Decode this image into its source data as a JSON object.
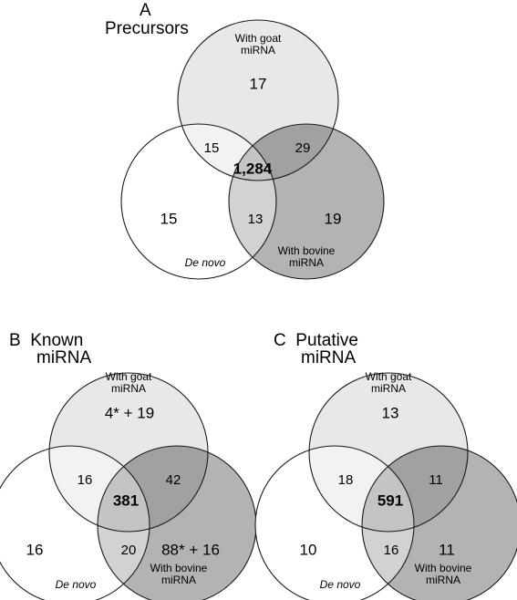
{
  "panels": [
    {
      "letter": "A",
      "title": "Precursors",
      "circle_labels": {
        "goat": [
          "With goat",
          "miRNA"
        ],
        "denovo": "De novo",
        "bovine": [
          "With bovine",
          "miRNA"
        ]
      },
      "counts": {
        "goat_only": "17",
        "denovo_only": "15",
        "bovine_only": "19",
        "goat_denovo": "15",
        "goat_bovine": "29",
        "denovo_bovine": "13",
        "all_three": "1,284"
      }
    },
    {
      "letter": "B",
      "title_line1": "B  Known",
      "title_line2": "miRNA",
      "circle_labels": {
        "goat": [
          "With goat",
          "miRNA"
        ],
        "denovo": "De novo",
        "bovine": [
          "With bovine",
          "miRNA"
        ]
      },
      "counts": {
        "goat_only": "4* + 19",
        "denovo_only": "16",
        "bovine_only": "88* + 16",
        "goat_denovo": "16",
        "goat_bovine": "42",
        "denovo_bovine": "20",
        "all_three": "381"
      }
    },
    {
      "letter": "C",
      "title_line1": "C  Putative",
      "title_line2": "miRNA",
      "circle_labels": {
        "goat": [
          "With goat",
          "miRNA"
        ],
        "denovo": "De novo",
        "bovine": [
          "With bovine",
          "miRNA"
        ]
      },
      "counts": {
        "goat_only": "13",
        "denovo_only": "10",
        "bovine_only": "11",
        "goat_denovo": "18",
        "goat_bovine": "11",
        "denovo_bovine": "16",
        "all_three": "591"
      }
    }
  ],
  "colors": {
    "goat_fill": "#e8e8e8",
    "bovine_fill": "#b3b3b3",
    "denovo_fill": "#ffffff",
    "goat_denovo": "#f2f2f2",
    "goat_bovine": "#a1a1a1",
    "denovo_bovine": "#d2d2d2",
    "all_three": "#c4c4c4",
    "stroke": "#1a1a1a"
  }
}
